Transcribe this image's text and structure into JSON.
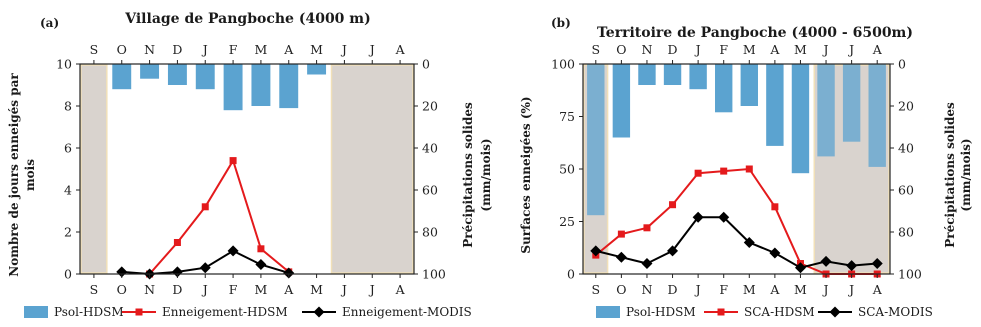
{
  "chart_data": [
    {
      "type": "bar+line",
      "panel_label": "(a)",
      "title": "Village de Pangboche (4000 m)",
      "categories": [
        "S",
        "O",
        "N",
        "D",
        "J",
        "F",
        "M",
        "A",
        "M",
        "J",
        "J",
        "A"
      ],
      "ylabel": [
        "Nombre de jours enneigés par",
        "mois"
      ],
      "ylim": [
        0,
        10
      ],
      "yticks": [
        "0",
        "2",
        "4",
        "6",
        "8",
        "10"
      ],
      "y2label": [
        "Précipitations solides",
        "(mm/mois)"
      ],
      "y2lim": [
        0,
        100
      ],
      "y2_inverted": true,
      "y2ticks": [
        "0",
        "20",
        "40",
        "60",
        "80",
        "100"
      ],
      "shaded_months": [
        "S",
        "J",
        "J",
        "A"
      ],
      "series": [
        {
          "name": "Psol-HDSM",
          "kind": "bar",
          "axis": "y2",
          "color": "#5ba3d0",
          "values": [
            null,
            12,
            7,
            10,
            12,
            22,
            20,
            21,
            5,
            null,
            null,
            null
          ]
        },
        {
          "name": "Enneigement-HDSM",
          "kind": "line",
          "axis": "y",
          "color": "#e41a1c",
          "marker": "square",
          "values": [
            null,
            null,
            0,
            1.5,
            3.2,
            5.4,
            1.2,
            0.1,
            null,
            null,
            null,
            null
          ]
        },
        {
          "name": "Enneigement-MODIS",
          "kind": "line",
          "axis": "y",
          "color": "#000000",
          "marker": "diamond",
          "values": [
            null,
            0.1,
            0,
            0.1,
            0.3,
            1.1,
            0.45,
            0.05,
            null,
            null,
            null,
            null
          ]
        }
      ]
    },
    {
      "type": "bar+line",
      "panel_label": "(b)",
      "title": "Territoire de Pangboche (4000 - 6500m)",
      "categories": [
        "S",
        "O",
        "N",
        "D",
        "J",
        "F",
        "M",
        "A",
        "M",
        "J",
        "J",
        "A"
      ],
      "ylabel": [
        "Surfaces enneigées (%)"
      ],
      "ylim": [
        0,
        100
      ],
      "yticks": [
        "0",
        "25",
        "50",
        "75",
        "100"
      ],
      "y2label": [
        "Précipitations solides",
        "(mm/mois)"
      ],
      "y2lim": [
        0,
        100
      ],
      "y2_inverted": true,
      "y2ticks": [
        "0",
        "20",
        "40",
        "60",
        "80",
        "100"
      ],
      "shaded_months": [
        "S",
        "J",
        "J",
        "A"
      ],
      "series": [
        {
          "name": "Psol-HDSM",
          "kind": "bar",
          "axis": "y2",
          "color": "#5ba3d0",
          "values": [
            72,
            35,
            10,
            10,
            12,
            23,
            20,
            39,
            52,
            44,
            37,
            49
          ]
        },
        {
          "name": "SCA-HDSM",
          "kind": "line",
          "axis": "y",
          "color": "#e41a1c",
          "marker": "square",
          "values": [
            9,
            19,
            22,
            33,
            48,
            49,
            50,
            32,
            5,
            0,
            0,
            0
          ]
        },
        {
          "name": "SCA-MODIS",
          "kind": "line",
          "axis": "y",
          "color": "#000000",
          "marker": "diamond",
          "values": [
            11,
            8,
            5,
            11,
            27,
            27,
            15,
            10,
            3,
            6,
            4,
            5
          ]
        }
      ]
    }
  ],
  "colors": {
    "bar": "#5ba3d0",
    "line_hdsm": "#e41a1c",
    "line_modis": "#000000",
    "shade": "#d9d3ce",
    "shade_border": "#f1e0b8"
  }
}
